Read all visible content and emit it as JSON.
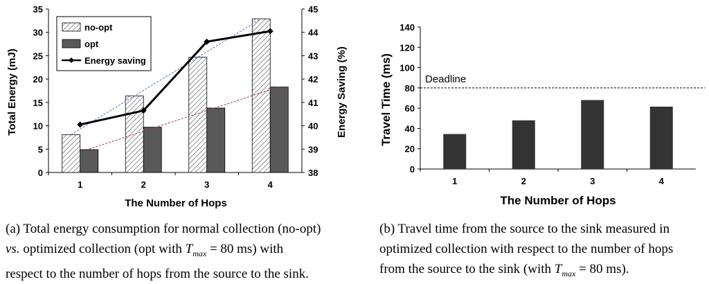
{
  "chart_data": [
    {
      "type": "bar",
      "title": "",
      "categories": [
        "1",
        "2",
        "3",
        "4"
      ],
      "xlabel": "The Number of Hops",
      "ylabel": "Total Energy (mJ)",
      "ylim": [
        0,
        35
      ],
      "yticks": [
        "0",
        "5",
        "10",
        "15",
        "20",
        "25",
        "30",
        "35"
      ],
      "y2label": "Energy Saving (%)",
      "y2lim": [
        38,
        45
      ],
      "y2ticks": [
        "38",
        "39",
        "40",
        "41",
        "42",
        "43",
        "44",
        "45"
      ],
      "series": [
        {
          "name": "no-opt",
          "kind": "bar",
          "pattern": "hatched",
          "values": [
            8.1,
            16.4,
            24.7,
            32.9
          ]
        },
        {
          "name": "opt",
          "kind": "bar",
          "color": "#595959",
          "values": [
            4.9,
            9.7,
            13.8,
            18.3
          ]
        },
        {
          "name": "Energy saving",
          "kind": "line",
          "axis": "right",
          "marker": "diamond",
          "values": [
            40.05,
            40.65,
            43.6,
            44.05
          ]
        }
      ],
      "trendlines": [
        {
          "series": "no-opt",
          "color": "#4f73b8",
          "style": "dashed"
        },
        {
          "series": "opt",
          "color": "#a33b3b",
          "style": "dashed"
        }
      ],
      "legend_position": "top-left"
    },
    {
      "type": "bar",
      "title": "",
      "categories": [
        "1",
        "2",
        "3",
        "4"
      ],
      "xlabel": "The Number of Hops",
      "ylabel": "Travel Time (ms)",
      "ylim": [
        0,
        140
      ],
      "yticks": [
        "0",
        "20",
        "40",
        "60",
        "80",
        "100",
        "120",
        "140"
      ],
      "series": [
        {
          "name": "Travel time",
          "color": "#333333",
          "values": [
            34.5,
            48,
            68,
            61.5
          ]
        }
      ],
      "reference_line": {
        "label": "Deadline",
        "value": 80,
        "style": "dashed"
      }
    }
  ],
  "captions": {
    "a": {
      "prefix": "(a)  Total energy consumption for normal collection (no-opt)",
      "line2_vs": "vs.",
      "line2_mid": "  optimized collection (opt with ",
      "tmax_T": "T",
      "tmax_sub": "max",
      "line2_end": " = 80 ms) with",
      "line3": "respect to the number of hops from the source to the sink."
    },
    "b": {
      "line1": "(b)  Travel time from the source to the sink measured in",
      "line2": "optimized collection with respect to the number of hops",
      "line3_start": "from the source to the sink (with ",
      "tmax_T": "T",
      "tmax_sub": "max",
      "line3_end": " = 80 ms)."
    }
  }
}
